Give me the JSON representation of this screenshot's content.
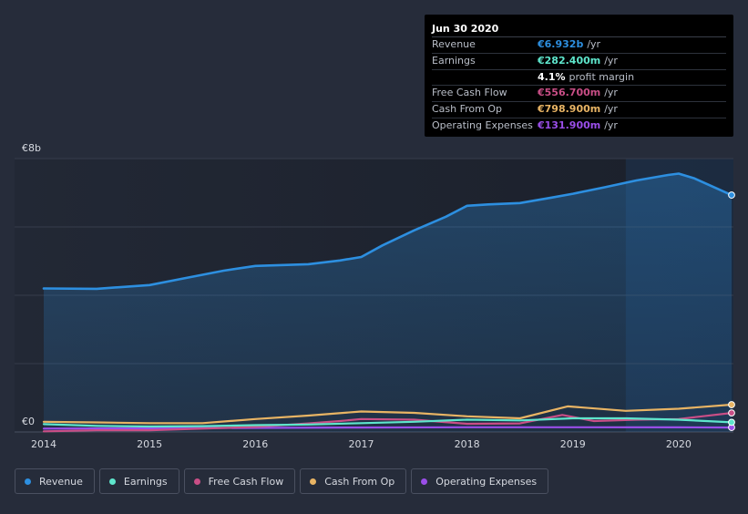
{
  "chart_data": {
    "type": "line",
    "title": "",
    "xlabel": "",
    "ylabel": "",
    "y_axis_labels": {
      "top": "€8b",
      "bottom": "€0"
    },
    "ylim": [
      0,
      8
    ],
    "xlim": [
      2014,
      2020.5
    ],
    "x_ticks": [
      2014,
      2015,
      2016,
      2017,
      2018,
      2019,
      2020
    ],
    "x_tick_labels": [
      "2014",
      "2015",
      "2016",
      "2017",
      "2018",
      "2019",
      "2020"
    ],
    "highlight_range": [
      2019.5,
      2020.5
    ],
    "series": [
      {
        "name": "Revenue",
        "color": "#2d8fe0",
        "fill": true,
        "points": [
          [
            2014.0,
            4.2
          ],
          [
            2014.5,
            4.19
          ],
          [
            2015.0,
            4.3
          ],
          [
            2015.3,
            4.48
          ],
          [
            2015.7,
            4.72
          ],
          [
            2016.0,
            4.86
          ],
          [
            2016.5,
            4.91
          ],
          [
            2016.8,
            5.02
          ],
          [
            2017.0,
            5.12
          ],
          [
            2017.2,
            5.46
          ],
          [
            2017.5,
            5.9
          ],
          [
            2017.8,
            6.3
          ],
          [
            2018.0,
            6.62
          ],
          [
            2018.2,
            6.66
          ],
          [
            2018.5,
            6.7
          ],
          [
            2018.8,
            6.86
          ],
          [
            2019.0,
            6.97
          ],
          [
            2019.3,
            7.16
          ],
          [
            2019.6,
            7.36
          ],
          [
            2019.9,
            7.52
          ],
          [
            2020.0,
            7.56
          ],
          [
            2020.15,
            7.42
          ],
          [
            2020.5,
            6.932
          ]
        ]
      },
      {
        "name": "Earnings",
        "color": "#5ee6cc",
        "fill": false,
        "points": [
          [
            2014.0,
            0.23
          ],
          [
            2014.5,
            0.18
          ],
          [
            2015.0,
            0.16
          ],
          [
            2015.5,
            0.17
          ],
          [
            2016.0,
            0.2
          ],
          [
            2016.5,
            0.22
          ],
          [
            2017.0,
            0.26
          ],
          [
            2017.5,
            0.3
          ],
          [
            2018.0,
            0.36
          ],
          [
            2018.5,
            0.34
          ],
          [
            2019.0,
            0.4
          ],
          [
            2019.5,
            0.4
          ],
          [
            2020.0,
            0.36
          ],
          [
            2020.5,
            0.2824
          ]
        ]
      },
      {
        "name": "Free Cash Flow",
        "color": "#c94e86",
        "fill": false,
        "points": [
          [
            2014.0,
            0.02
          ],
          [
            2014.5,
            0.05
          ],
          [
            2015.0,
            0.05
          ],
          [
            2015.5,
            0.1
          ],
          [
            2016.0,
            0.15
          ],
          [
            2016.5,
            0.25
          ],
          [
            2016.8,
            0.32
          ],
          [
            2017.0,
            0.38
          ],
          [
            2017.5,
            0.36
          ],
          [
            2018.0,
            0.24
          ],
          [
            2018.5,
            0.25
          ],
          [
            2018.9,
            0.5
          ],
          [
            2019.2,
            0.32
          ],
          [
            2019.6,
            0.36
          ],
          [
            2020.0,
            0.38
          ],
          [
            2020.5,
            0.5567
          ]
        ]
      },
      {
        "name": "Cash From Op",
        "color": "#e8b464",
        "fill": false,
        "points": [
          [
            2014.0,
            0.3
          ],
          [
            2014.5,
            0.28
          ],
          [
            2015.0,
            0.26
          ],
          [
            2015.5,
            0.26
          ],
          [
            2016.0,
            0.38
          ],
          [
            2016.5,
            0.48
          ],
          [
            2017.0,
            0.6
          ],
          [
            2017.5,
            0.56
          ],
          [
            2018.0,
            0.46
          ],
          [
            2018.5,
            0.4
          ],
          [
            2018.95,
            0.75
          ],
          [
            2019.5,
            0.62
          ],
          [
            2020.0,
            0.68
          ],
          [
            2020.5,
            0.7989
          ]
        ]
      },
      {
        "name": "Operating Expenses",
        "color": "#9a4ee8",
        "fill": false,
        "points": [
          [
            2014.0,
            0.1
          ],
          [
            2015.0,
            0.11
          ],
          [
            2016.0,
            0.12
          ],
          [
            2017.0,
            0.13
          ],
          [
            2018.0,
            0.14
          ],
          [
            2019.0,
            0.14
          ],
          [
            2020.0,
            0.135
          ],
          [
            2020.5,
            0.1319
          ]
        ]
      }
    ]
  },
  "tooltip": {
    "date": "Jun 30 2020",
    "rows": [
      {
        "label": "Revenue",
        "value": "€6.932b",
        "unit": "/yr",
        "color": "#2d8fe0"
      },
      {
        "label": "Earnings",
        "value": "€282.400m",
        "unit": "/yr",
        "color": "#5ee6cc"
      },
      {
        "label": "",
        "value": "4.1%",
        "unit": "profit margin",
        "color": "#ffffff"
      },
      {
        "label": "Free Cash Flow",
        "value": "€556.700m",
        "unit": "/yr",
        "color": "#c94e86"
      },
      {
        "label": "Cash From Op",
        "value": "€798.900m",
        "unit": "/yr",
        "color": "#e8b464"
      },
      {
        "label": "Operating Expenses",
        "value": "€131.900m",
        "unit": "/yr",
        "color": "#9a4ee8"
      }
    ]
  },
  "legend": [
    {
      "label": "Revenue",
      "color": "#2d8fe0"
    },
    {
      "label": "Earnings",
      "color": "#5ee6cc"
    },
    {
      "label": "Free Cash Flow",
      "color": "#c94e86"
    },
    {
      "label": "Cash From Op",
      "color": "#e8b464"
    },
    {
      "label": "Operating Expenses",
      "color": "#9a4ee8"
    }
  ]
}
